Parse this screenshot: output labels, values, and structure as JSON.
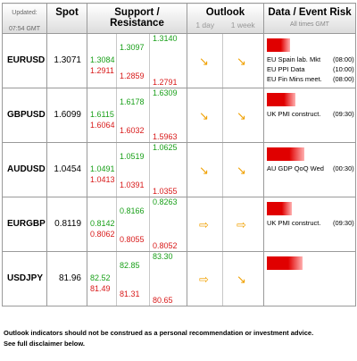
{
  "header": {
    "updated_label": "Updated:",
    "updated_time": "07:54 GMT",
    "spot": "Spot",
    "sr": "Support / Resistance",
    "outlook": "Outlook",
    "outlook_1day": "1 day",
    "outlook_1week": "1 week",
    "data": "Data / Event Risk",
    "data_sub": "All times GMT"
  },
  "rows": [
    {
      "pair": "EURUSD",
      "spot": "1.3071",
      "c1g": "1.3084",
      "c1r": "1.2911",
      "c2g": "1.3097",
      "c2r": "1.2859",
      "c3g": "1.3140",
      "c3r": "1.2791",
      "d1": "↘",
      "d2": "↘",
      "bar_color": "#e00000",
      "events": [
        "EU Spain lab. Mkt",
        "EU PPI Data",
        "EU Fin Mins meet."
      ],
      "times": [
        "(08:00)",
        "(10:00)",
        "(08:00)"
      ]
    },
    {
      "pair": "GBPUSD",
      "spot": "1.6099",
      "c1g": "1.6115",
      "c1r": "1.6064",
      "c2g": "1.6178",
      "c2r": "1.6032",
      "c3g": "1.6309",
      "c3r": "1.5963",
      "d1": "↘",
      "d2": "↘",
      "bar_color": "#e00000",
      "events": [
        "UK PMI construct."
      ],
      "times": [
        "(09:30)"
      ]
    },
    {
      "pair": "AUDUSD",
      "spot": "1.0454",
      "c1g": "1.0491",
      "c1r": "1.0413",
      "c2g": "1.0519",
      "c2r": "1.0391",
      "c3g": "1.0625",
      "c3r": "1.0355",
      "d1": "↘",
      "d2": "↘",
      "bar_color": "#e00000",
      "events": [
        "AU GDP QoQ  Wed"
      ],
      "times": [
        "(00:30)"
      ]
    },
    {
      "pair": "EURGBP",
      "spot": "0.8119",
      "c1g": "0.8142",
      "c1r": "0.8062",
      "c2g": "0.8166",
      "c2r": "0.8055",
      "c3g": "0.8263",
      "c3r": "0.8052",
      "d1": "⇨",
      "d2": "⇨",
      "bar_color": "#e00000",
      "events": [
        "UK PMI construct."
      ],
      "times": [
        "(09:30)"
      ]
    },
    {
      "pair": "USDJPY",
      "spot": "81.96",
      "c1g": "82.52",
      "c1r": "81.49",
      "c2g": "82.85",
      "c2r": "81.31",
      "c3g": "83.30",
      "c3r": "80.65",
      "d1": "⇨",
      "d2": "↘",
      "bar_color": "#e00000",
      "events": [],
      "times": []
    }
  ],
  "footer": {
    "line1": "Outlook indicators should not be construed as a personal recommendation or investment advice.",
    "line2": "See full disclaimer below."
  }
}
